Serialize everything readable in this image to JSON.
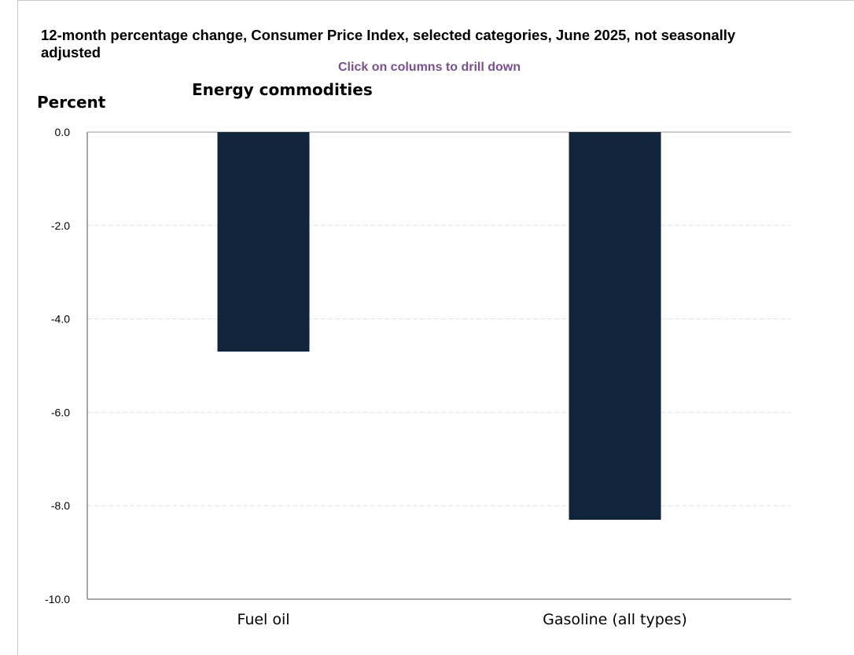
{
  "chart_data": {
    "type": "bar",
    "title": "12-month percentage change, Consumer Price Index, selected categories, June 2025, not seasonally adjusted",
    "note": "Click on columns to drill down",
    "subtitle": "Energy commodities",
    "ylabel": "Percent",
    "xlabel": "",
    "categories": [
      "Fuel oil",
      "Gasoline (all types)"
    ],
    "values": [
      -4.7,
      -8.3
    ],
    "ylim": [
      -10.0,
      0.0
    ],
    "yticks": [
      "0.0",
      "-2.0",
      "-4.0",
      "-6.0",
      "-8.0",
      "-10.0"
    ],
    "ytick_values": [
      0,
      -2,
      -4,
      -6,
      -8,
      -10
    ],
    "bar_color": "#10243a",
    "grid": true,
    "legend": "none"
  }
}
